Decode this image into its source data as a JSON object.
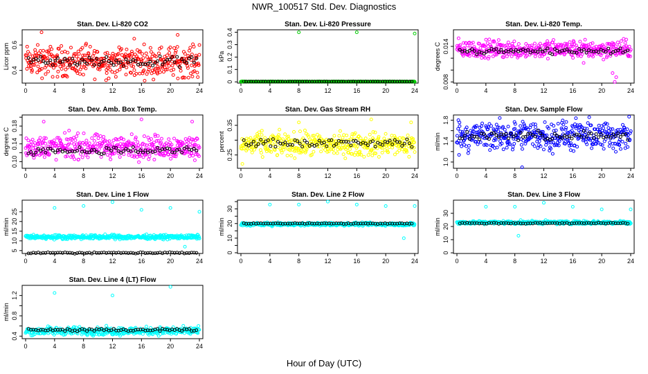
{
  "title": "NWR_100517  Std. Dev. Diagnostics",
  "xlabel": "Hour of Day (UTC)",
  "colors": {
    "red": "#ff0000",
    "green": "#00cc00",
    "magenta": "#ff00ff",
    "yellow": "#ffff00",
    "blue": "#0000ff",
    "cyan": "#00ffff",
    "black": "#000000"
  },
  "chart_data": [
    {
      "type": "scatter",
      "title": "Stan. Dev. Li-820 CO2",
      "ylabel": "Licor ppm",
      "xlim": [
        0,
        24
      ],
      "xticks": [
        0,
        4,
        8,
        12,
        16,
        20,
        24
      ],
      "ylim": [
        0.3,
        0.72
      ],
      "yticks": [
        0.4,
        0.6
      ],
      "color": "red",
      "summary": {
        "band": [
          0.35,
          0.62
        ],
        "center": 0.47,
        "black_center": 0.47,
        "outliers": [
          [
            2.2,
            0.7
          ],
          [
            15.0,
            0.65
          ],
          [
            21.0,
            0.68
          ],
          [
            8.3,
            0.6
          ],
          [
            24.0,
            0.6
          ]
        ]
      }
    },
    {
      "type": "scatter",
      "title": "Stan. Dev. Li-820 Pressure",
      "ylabel": "kPa",
      "xlim": [
        0,
        24
      ],
      "xticks": [
        0,
        4,
        8,
        12,
        16,
        20,
        24
      ],
      "ylim": [
        -0.01,
        0.42
      ],
      "yticks": [
        0.0,
        0.1,
        0.2,
        0.3,
        0.4
      ],
      "color": "green",
      "summary": {
        "band": [
          0.0,
          0.003
        ],
        "center": 0.002,
        "black_center": 0.002,
        "outliers": [
          [
            0.2,
            0.005
          ],
          [
            8.0,
            0.4
          ],
          [
            16.0,
            0.4
          ],
          [
            24.0,
            0.39
          ]
        ]
      }
    },
    {
      "type": "scatter",
      "title": "Stan. Dev. Li-820 Temp.",
      "ylabel": "degrees C",
      "xlim": [
        0,
        24
      ],
      "xticks": [
        0,
        4,
        8,
        12,
        16,
        20,
        24
      ],
      "ylim": [
        0.0078,
        0.0168
      ],
      "yticks": [
        0.008,
        0.01,
        0.012,
        0.014
      ],
      "ytick_labels": [
        "0.008",
        "",
        "",
        "0.014"
      ],
      "color": "magenta",
      "summary": {
        "band": [
          0.0118,
          0.0152
        ],
        "center": 0.0135,
        "black_center": 0.0132,
        "outliers": [
          [
            21.5,
            0.0095
          ],
          [
            22.0,
            0.0088
          ],
          [
            21.8,
            0.008
          ],
          [
            17.5,
            0.0112
          ]
        ]
      }
    },
    {
      "type": "scatter",
      "title": "Stan. Dev. Amb. Box Temp.",
      "ylabel": "degrees C",
      "xlim": [
        0,
        24
      ],
      "xticks": [
        0,
        4,
        8,
        12,
        16,
        20,
        24
      ],
      "ylim": [
        0.085,
        0.205
      ],
      "yticks": [
        0.1,
        0.12,
        0.14,
        0.16,
        0.18,
        0.2
      ],
      "ytick_labels": [
        "0.10",
        "",
        "0.14",
        "",
        "0.18",
        ""
      ],
      "color": "magenta",
      "summary": {
        "band": [
          0.105,
          0.165
        ],
        "center": 0.133,
        "black_center": 0.125,
        "outliers": [
          [
            2.5,
            0.19
          ],
          [
            16.0,
            0.195
          ],
          [
            23.0,
            0.19
          ],
          [
            6.0,
            0.17
          ]
        ]
      }
    },
    {
      "type": "scatter",
      "title": "Stan. Dev. Gas Stream RH",
      "ylabel": "percent",
      "xlim": [
        0,
        24
      ],
      "xticks": [
        0,
        4,
        8,
        12,
        16,
        20,
        24
      ],
      "ylim": [
        0.205,
        0.385
      ],
      "yticks": [
        0.25,
        0.3,
        0.35
      ],
      "ytick_labels": [
        "0.25",
        "",
        "0.35"
      ],
      "color": "yellow",
      "summary": {
        "band": [
          0.245,
          0.335
        ],
        "center": 0.285,
        "black_center": 0.29,
        "outliers": [
          [
            0.2,
            0.22
          ],
          [
            18.0,
            0.37
          ],
          [
            23.5,
            0.36
          ],
          [
            8.0,
            0.36
          ]
        ]
      }
    },
    {
      "type": "scatter",
      "title": "Stan. Dev. Sample Flow",
      "ylabel": "ml/min",
      "xlim": [
        0,
        24
      ],
      "xticks": [
        0,
        4,
        8,
        12,
        16,
        20,
        24
      ],
      "ylim": [
        0.88,
        1.9
      ],
      "yticks": [
        1.0,
        1.2,
        1.4,
        1.6,
        1.8
      ],
      "ytick_labels": [
        "1.0",
        "",
        "1.4",
        "",
        "1.8"
      ],
      "color": "blue",
      "summary": {
        "band": [
          1.1,
          1.75
        ],
        "center": 1.5,
        "black_center": 1.5,
        "outliers": [
          [
            9.0,
            0.9
          ],
          [
            0.2,
            1.8
          ],
          [
            14.5,
            1.75
          ]
        ]
      }
    },
    {
      "type": "scatter",
      "title": "Stan. Dev. Line 1 Flow",
      "ylabel": "ml/min",
      "xlim": [
        0,
        24
      ],
      "xticks": [
        0,
        4,
        8,
        12,
        16,
        20,
        24
      ],
      "ylim": [
        3.5,
        31
      ],
      "yticks": [
        5,
        10,
        15,
        20,
        25
      ],
      "color": "cyan",
      "summary": {
        "band": [
          11,
          13.5
        ],
        "center": 12,
        "black_center": 3.8,
        "outliers": [
          [
            4.0,
            27
          ],
          [
            8.0,
            28
          ],
          [
            12.0,
            30
          ],
          [
            16.0,
            26
          ],
          [
            20.0,
            27
          ],
          [
            24.0,
            25
          ],
          [
            22.0,
            7
          ]
        ]
      }
    },
    {
      "type": "scatter",
      "title": "Stan. Dev. Line 2 Flow",
      "ylabel": "ml/min",
      "xlim": [
        0,
        24
      ],
      "xticks": [
        0,
        4,
        8,
        12,
        16,
        20,
        24
      ],
      "ylim": [
        -0.5,
        36
      ],
      "yticks": [
        0,
        5,
        10,
        15,
        20,
        25,
        30,
        35
      ],
      "ytick_labels": [
        "0",
        "",
        "10",
        "",
        "20",
        "",
        "30",
        ""
      ],
      "color": "cyan",
      "summary": {
        "band": [
          18.5,
          21
        ],
        "center": 19.5,
        "black_center": 20,
        "outliers": [
          [
            4.0,
            33
          ],
          [
            8.0,
            33
          ],
          [
            12.0,
            35
          ],
          [
            16.0,
            33
          ],
          [
            20.0,
            32
          ],
          [
            24.0,
            32
          ],
          [
            22.5,
            10
          ]
        ]
      }
    },
    {
      "type": "scatter",
      "title": "Stan. Dev. Line 3 Flow",
      "ylabel": "ml/min",
      "xlim": [
        0,
        24
      ],
      "xticks": [
        0,
        4,
        8,
        12,
        16,
        20,
        24
      ],
      "ylim": [
        -0.5,
        40
      ],
      "yticks": [
        0,
        10,
        20,
        30
      ],
      "color": "cyan",
      "summary": {
        "band": [
          21.5,
          24.5
        ],
        "center": 23,
        "black_center": 22.5,
        "outliers": [
          [
            4.0,
            35
          ],
          [
            8.0,
            35
          ],
          [
            12.0,
            38
          ],
          [
            16.0,
            35
          ],
          [
            20.0,
            33
          ],
          [
            24.0,
            33
          ],
          [
            8.5,
            13
          ]
        ]
      }
    },
    {
      "type": "scatter",
      "title": "Stan. Dev. Line 4 (LT) Flow",
      "ylabel": "ml/min",
      "xlim": [
        0,
        24
      ],
      "xticks": [
        0,
        4,
        8,
        12,
        16,
        20,
        24
      ],
      "ylim": [
        0.35,
        1.4
      ],
      "yticks": [
        0.4,
        0.6,
        0.8,
        1.0,
        1.2
      ],
      "ytick_labels": [
        "0.4",
        "",
        "0.8",
        "",
        "1.2"
      ],
      "color": "cyan",
      "summary": {
        "band": [
          0.42,
          0.6
        ],
        "center": 0.5,
        "black_center": 0.52,
        "outliers": [
          [
            4.0,
            1.25
          ],
          [
            12.0,
            1.2
          ],
          [
            20.0,
            1.37
          ]
        ]
      }
    }
  ]
}
